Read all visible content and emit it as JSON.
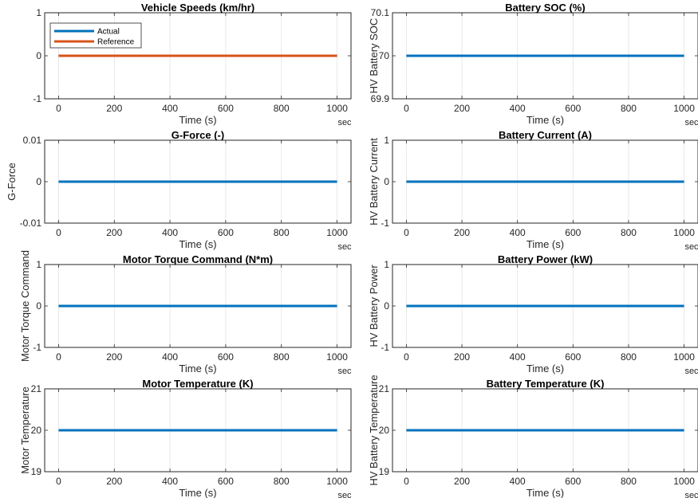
{
  "chart_data": [
    {
      "type": "line",
      "title": "Vehicle Speeds (km/hr)",
      "xlabel": "Time (s)",
      "xunit": "sec",
      "ylabel": "",
      "xlim": [
        -50,
        1050
      ],
      "ylim": [
        -1,
        1
      ],
      "xticks": [
        "0",
        "200",
        "400",
        "600",
        "800",
        "1000"
      ],
      "yticks": [
        "-1",
        "0",
        "1"
      ],
      "grid": "vertical",
      "legend": "top-left",
      "series": [
        {
          "name": "Actual",
          "color": "#0072BD",
          "x": [
            0,
            1000
          ],
          "y": [
            0,
            0
          ]
        },
        {
          "name": "Reference",
          "color": "#D95319",
          "x": [
            0,
            1000
          ],
          "y": [
            0,
            0
          ]
        }
      ]
    },
    {
      "type": "line",
      "title": "Battery SOC (%)",
      "xlabel": "Time (s)",
      "xunit": "sec",
      "ylabel": "HV Battery SOC",
      "xlim": [
        -50,
        1050
      ],
      "ylim": [
        69.9,
        70.1
      ],
      "xticks": [
        "0",
        "200",
        "400",
        "600",
        "800",
        "1000"
      ],
      "yticks": [
        "69.9",
        "70",
        "70.1"
      ],
      "grid": "vertical",
      "series": [
        {
          "color": "#0072BD",
          "x": [
            0,
            1000
          ],
          "y": [
            70,
            70
          ]
        }
      ]
    },
    {
      "type": "line",
      "title": "G-Force (-)",
      "xlabel": "Time (s)",
      "xunit": "sec",
      "ylabel": "G-Force",
      "xlim": [
        -50,
        1050
      ],
      "ylim": [
        -0.01,
        0.01
      ],
      "xticks": [
        "0",
        "200",
        "400",
        "600",
        "800",
        "1000"
      ],
      "yticks": [
        "-0.01",
        "0",
        "0.01"
      ],
      "grid": "vertical",
      "series": [
        {
          "color": "#0072BD",
          "x": [
            0,
            1000
          ],
          "y": [
            0,
            0
          ]
        }
      ]
    },
    {
      "type": "line",
      "title": "Battery Current (A)",
      "xlabel": "Time (s)",
      "xunit": "sec",
      "ylabel": "HV Battery Current",
      "xlim": [
        -50,
        1050
      ],
      "ylim": [
        -1,
        1
      ],
      "xticks": [
        "0",
        "200",
        "400",
        "600",
        "800",
        "1000"
      ],
      "yticks": [
        "-1",
        "0",
        "1"
      ],
      "grid": "vertical",
      "series": [
        {
          "color": "#0072BD",
          "x": [
            0,
            1000
          ],
          "y": [
            0,
            0
          ]
        }
      ]
    },
    {
      "type": "line",
      "title": "Motor Torque Command (N*m)",
      "xlabel": "Time (s)",
      "xunit": "sec",
      "ylabel": "Motor Torque Command",
      "xlim": [
        -50,
        1050
      ],
      "ylim": [
        -1,
        1
      ],
      "xticks": [
        "0",
        "200",
        "400",
        "600",
        "800",
        "1000"
      ],
      "yticks": [
        "-1",
        "0",
        "1"
      ],
      "grid": "vertical",
      "series": [
        {
          "color": "#0072BD",
          "x": [
            0,
            1000
          ],
          "y": [
            0,
            0
          ]
        }
      ]
    },
    {
      "type": "line",
      "title": "Battery Power (kW)",
      "xlabel": "Time (s)",
      "xunit": "sec",
      "ylabel": "HV Battery Power",
      "xlim": [
        -50,
        1050
      ],
      "ylim": [
        -1,
        1
      ],
      "xticks": [
        "0",
        "200",
        "400",
        "600",
        "800",
        "1000"
      ],
      "yticks": [
        "-1",
        "0",
        "1"
      ],
      "grid": "vertical",
      "series": [
        {
          "color": "#0072BD",
          "x": [
            0,
            1000
          ],
          "y": [
            0,
            0
          ]
        }
      ]
    },
    {
      "type": "line",
      "title": "Motor Temperature (K)",
      "xlabel": "Time (s)",
      "xunit": "sec",
      "ylabel": "Motor Temperature",
      "xlim": [
        -50,
        1050
      ],
      "ylim": [
        19,
        21
      ],
      "xticks": [
        "0",
        "200",
        "400",
        "600",
        "800",
        "1000"
      ],
      "yticks": [
        "19",
        "20",
        "21"
      ],
      "grid": "vertical",
      "series": [
        {
          "color": "#0072BD",
          "x": [
            0,
            1000
          ],
          "y": [
            20,
            20
          ]
        }
      ]
    },
    {
      "type": "line",
      "title": "Battery Temperature (K)",
      "xlabel": "Time (s)",
      "xunit": "sec",
      "ylabel": "HV Battery Temperature",
      "xlim": [
        -50,
        1050
      ],
      "ylim": [
        19,
        21
      ],
      "xticks": [
        "0",
        "200",
        "400",
        "600",
        "800",
        "1000"
      ],
      "yticks": [
        "19",
        "20",
        "21"
      ],
      "grid": "vertical",
      "series": [
        {
          "color": "#0072BD",
          "x": [
            0,
            1000
          ],
          "y": [
            20,
            20
          ]
        }
      ]
    }
  ]
}
